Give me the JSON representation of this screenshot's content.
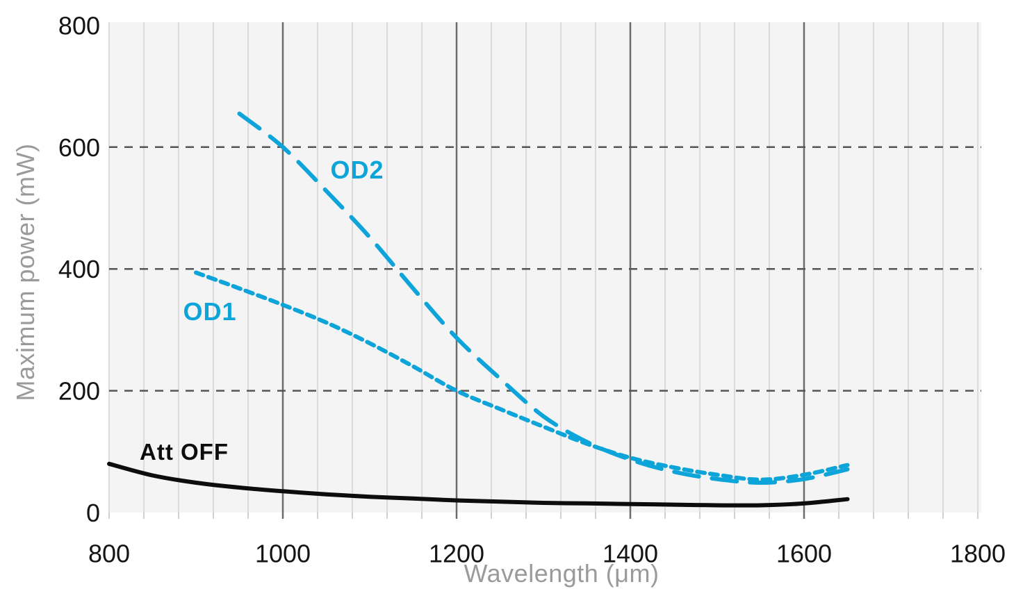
{
  "page": {
    "background": "#ffffff"
  },
  "chart_data": {
    "type": "line",
    "title": "",
    "xlabel": "Wavelength (μm)",
    "ylabel": "Maximum power (mW)",
    "xlim": [
      800,
      1804
    ],
    "ylim": [
      0,
      805
    ],
    "x_ticks": [
      800,
      1000,
      1200,
      1400,
      1600,
      1800
    ],
    "y_ticks": [
      0,
      200,
      400,
      600,
      800
    ],
    "grid": {
      "x_minor_step": 40,
      "x_major_lines": [
        1000,
        1200,
        1400,
        1600
      ],
      "y_dashed_lines": [
        200,
        400,
        600
      ]
    },
    "legend_position": "inline-labels",
    "colors": {
      "accent_cyan": "#0da4da",
      "line_black": "#0d0d0d",
      "panel_bg": "#f4f4f4",
      "grid_minor": "#dbdbdb",
      "grid_major": "#6b6b6b",
      "grid_dashed": "#555555",
      "tick_label": "#141414",
      "axis_title_gray": "#9a9a9a"
    },
    "series": [
      {
        "name": "OD2",
        "line_style": "long-dash",
        "color": "#0da4da",
        "points": [
          [
            950,
            655
          ],
          [
            1000,
            600
          ],
          [
            1050,
            528
          ],
          [
            1100,
            452
          ],
          [
            1150,
            368
          ],
          [
            1200,
            287
          ],
          [
            1250,
            220
          ],
          [
            1300,
            158
          ],
          [
            1350,
            116
          ],
          [
            1400,
            87
          ],
          [
            1450,
            67
          ],
          [
            1500,
            55
          ],
          [
            1550,
            49
          ],
          [
            1600,
            55
          ],
          [
            1650,
            71
          ]
        ]
      },
      {
        "name": "OD1",
        "line_style": "short-dash",
        "color": "#0da4da",
        "points": [
          [
            900,
            394
          ],
          [
            950,
            368
          ],
          [
            1000,
            341
          ],
          [
            1050,
            312
          ],
          [
            1100,
            278
          ],
          [
            1150,
            240
          ],
          [
            1200,
            200
          ],
          [
            1250,
            170
          ],
          [
            1300,
            141
          ],
          [
            1350,
            113
          ],
          [
            1400,
            90
          ],
          [
            1450,
            74
          ],
          [
            1500,
            62
          ],
          [
            1550,
            54
          ],
          [
            1600,
            62
          ],
          [
            1650,
            78
          ]
        ]
      },
      {
        "name": "Att OFF",
        "line_style": "solid",
        "color": "#0d0d0d",
        "points": [
          [
            800,
            80
          ],
          [
            850,
            61
          ],
          [
            900,
            49
          ],
          [
            950,
            41
          ],
          [
            1000,
            35
          ],
          [
            1050,
            30
          ],
          [
            1100,
            26
          ],
          [
            1150,
            23
          ],
          [
            1200,
            20
          ],
          [
            1250,
            18
          ],
          [
            1300,
            16
          ],
          [
            1350,
            15
          ],
          [
            1400,
            14
          ],
          [
            1450,
            13
          ],
          [
            1500,
            12
          ],
          [
            1550,
            12
          ],
          [
            1600,
            15
          ],
          [
            1650,
            22
          ]
        ]
      }
    ]
  }
}
